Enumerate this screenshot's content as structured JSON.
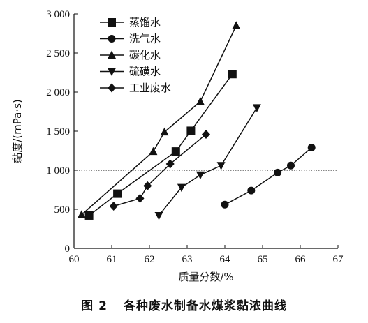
{
  "figure": {
    "caption_number": "图 2",
    "caption_title": "各种废水制备水煤浆黏浓曲线"
  },
  "chart_data": {
    "type": "line",
    "xlabel": "质量分数/%",
    "ylabel": "黏度/(mPa·s)",
    "xlim": [
      60,
      67
    ],
    "ylim": [
      0,
      3000
    ],
    "x_ticks": [
      "60",
      "61",
      "62",
      "63",
      "64",
      "65",
      "66",
      "67"
    ],
    "y_ticks": [
      "0",
      "500",
      "1 000",
      "1 500",
      "2 000",
      "2 500",
      "3 000"
    ],
    "reference_line": {
      "y": 1000,
      "style": "dotted"
    },
    "legend_position": "top-left",
    "series": [
      {
        "name": "蒸馏水",
        "marker": "square",
        "points": [
          [
            60.4,
            420
          ],
          [
            61.15,
            700
          ],
          [
            62.7,
            1240
          ],
          [
            63.1,
            1505
          ],
          [
            64.2,
            2230
          ]
        ]
      },
      {
        "name": "洗气水",
        "marker": "circle",
        "points": [
          [
            64.0,
            560
          ],
          [
            64.7,
            740
          ],
          [
            65.4,
            970
          ],
          [
            65.75,
            1060
          ],
          [
            66.3,
            1290
          ]
        ]
      },
      {
        "name": "碳化水",
        "marker": "triangle-up",
        "points": [
          [
            60.2,
            430
          ],
          [
            62.1,
            1240
          ],
          [
            62.4,
            1490
          ],
          [
            63.35,
            1880
          ],
          [
            64.3,
            2850
          ]
        ]
      },
      {
        "name": "硫磺水",
        "marker": "triangle-down",
        "points": [
          [
            62.25,
            420
          ],
          [
            62.85,
            780
          ],
          [
            63.35,
            940
          ],
          [
            63.9,
            1060
          ],
          [
            64.85,
            1800
          ]
        ]
      },
      {
        "name": "工业废水",
        "marker": "diamond",
        "points": [
          [
            61.05,
            540
          ],
          [
            61.75,
            640
          ],
          [
            61.95,
            800
          ],
          [
            62.55,
            1080
          ],
          [
            63.5,
            1460
          ]
        ]
      }
    ]
  }
}
